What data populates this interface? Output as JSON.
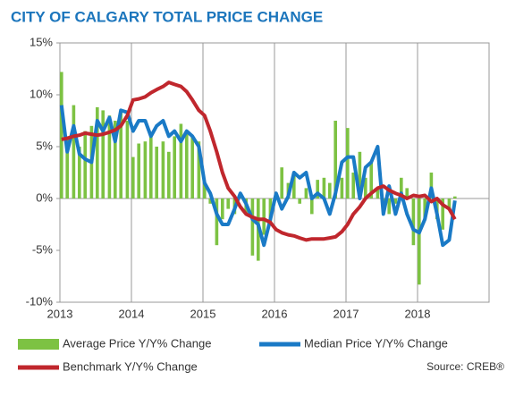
{
  "chart_data": {
    "type": "bar_line",
    "title": "CITY OF CALGARY TOTAL PRICE CHANGE",
    "source": "Source: CREB®",
    "x": [
      2013,
      2013.08,
      2013.17,
      2013.25,
      2013.33,
      2013.42,
      2013.5,
      2013.58,
      2013.67,
      2013.75,
      2013.83,
      2013.92,
      2014,
      2014.08,
      2014.17,
      2014.25,
      2014.33,
      2014.42,
      2014.5,
      2014.58,
      2014.67,
      2014.75,
      2014.83,
      2014.92,
      2015,
      2015.08,
      2015.17,
      2015.25,
      2015.33,
      2015.42,
      2015.5,
      2015.58,
      2015.67,
      2015.75,
      2015.83,
      2015.92,
      2016,
      2016.08,
      2016.17,
      2016.25,
      2016.33,
      2016.42,
      2016.5,
      2016.58,
      2016.67,
      2016.75,
      2016.83,
      2016.92,
      2017,
      2017.08,
      2017.17,
      2017.25,
      2017.33,
      2017.42,
      2017.5,
      2017.58,
      2017.67,
      2017.75,
      2017.83,
      2017.92,
      2018,
      2018.08,
      2018.17,
      2018.25,
      2018.33,
      2018.42,
      2018.5
    ],
    "series": [
      {
        "name": "Average Price Y/Y% Change",
        "color": "#7dc243",
        "kind": "bar",
        "values": [
          12.2,
          6.0,
          9.0,
          5.0,
          6.5,
          7.0,
          8.8,
          8.5,
          8.0,
          7.5,
          8.3,
          7.5,
          4.0,
          5.3,
          5.5,
          6.0,
          5.0,
          5.5,
          4.5,
          6.0,
          7.2,
          6.5,
          6.0,
          5.5,
          1.5,
          -0.5,
          -4.5,
          -2.0,
          -1.0,
          -1.5,
          0.5,
          -1.5,
          -5.5,
          -6.0,
          -3.5,
          -2.5,
          0.5,
          3.0,
          1.5,
          2.5,
          -0.5,
          1.0,
          -1.5,
          1.8,
          2.0,
          1.5,
          7.5,
          2.0,
          6.8,
          2.5,
          4.5,
          2.0,
          3.5,
          1.0,
          -1.0,
          -1.5,
          -0.5,
          2.0,
          1.0,
          -4.5,
          -8.3,
          -2.0,
          2.5,
          -2.0,
          -3.0,
          -1.0,
          0.2
        ]
      },
      {
        "name": "Median Price Y/Y% Change",
        "color": "#1a7ac6",
        "kind": "line",
        "values": [
          9.0,
          4.5,
          7.0,
          4.3,
          3.8,
          3.5,
          7.5,
          6.5,
          7.8,
          5.5,
          8.5,
          8.3,
          6.5,
          7.5,
          7.5,
          6.0,
          7.0,
          7.5,
          6.0,
          6.5,
          5.5,
          6.5,
          6.0,
          5.0,
          1.5,
          0.5,
          -1.5,
          -2.5,
          -2.5,
          -1.0,
          0.5,
          -0.5,
          -2.0,
          -2.5,
          -4.5,
          -2.0,
          0.5,
          -1.0,
          0.2,
          2.5,
          2.0,
          2.5,
          0.0,
          0.5,
          0.0,
          -1.5,
          0.5,
          3.5,
          4.0,
          4.0,
          0.0,
          3.0,
          3.5,
          5.0,
          -1.5,
          1.2,
          -1.5,
          0.5,
          -1.5,
          -3.0,
          -3.3,
          -2.0,
          1.0,
          -1.5,
          -4.5,
          -4.0,
          -0.2
        ]
      },
      {
        "name": "Benchmark Y/Y% Change",
        "color": "#c0272d",
        "kind": "line",
        "values": [
          5.7,
          5.8,
          6.0,
          6.1,
          6.3,
          6.2,
          6.1,
          6.2,
          6.4,
          6.6,
          7.0,
          8.0,
          9.5,
          9.6,
          9.8,
          10.2,
          10.5,
          10.8,
          11.2,
          11.0,
          10.8,
          10.3,
          9.5,
          8.5,
          8.0,
          6.5,
          4.5,
          2.5,
          1.0,
          0.2,
          -0.8,
          -1.5,
          -1.8,
          -2.0,
          -2.0,
          -2.3,
          -3.0,
          -3.3,
          -3.5,
          -3.6,
          -3.8,
          -4.0,
          -3.9,
          -3.9,
          -3.9,
          -3.8,
          -3.7,
          -3.2,
          -2.5,
          -1.5,
          -0.8,
          0.0,
          0.5,
          1.0,
          1.2,
          0.8,
          0.5,
          0.3,
          0.0,
          0.3,
          0.2,
          0.3,
          -0.3,
          0.0,
          -0.6,
          -1.0,
          -2.0
        ]
      }
    ],
    "xlim": [
      2013,
      2019
    ],
    "xticks": [
      2013,
      2014,
      2015,
      2016,
      2017,
      2018
    ],
    "ylim": [
      -10,
      15
    ],
    "yticks": [
      {
        "value": -10,
        "label": "-10%"
      },
      {
        "value": -5,
        "label": "-5%"
      },
      {
        "value": 0,
        "label": "0%"
      },
      {
        "value": 5,
        "label": "5%"
      },
      {
        "value": 10,
        "label": "10%"
      },
      {
        "value": 15,
        "label": "15%"
      }
    ],
    "xgrid": true
  }
}
